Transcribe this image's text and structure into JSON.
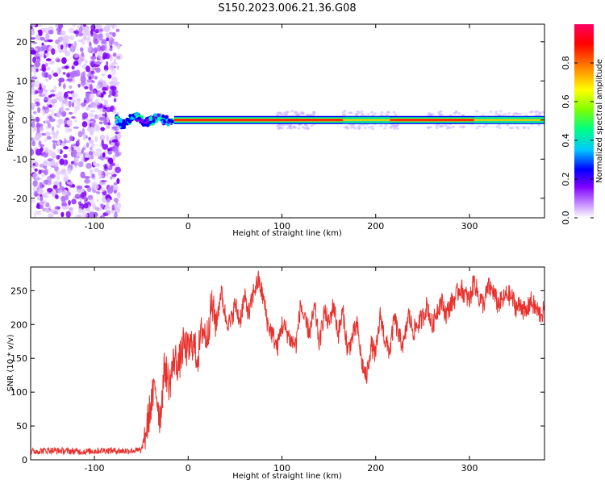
{
  "title": "S150.2023.006.21.36.G08",
  "chart_data": [
    {
      "type": "heatmap",
      "xlabel": "Height of straight line (km)",
      "ylabel": "Frequency (Hz)",
      "xlim": [
        -168,
        380
      ],
      "ylim": [
        -25,
        24.5
      ],
      "xticks": [
        -100,
        0,
        100,
        200,
        300
      ],
      "yticks": [
        20,
        10,
        0,
        -10,
        -20
      ],
      "colorbar": {
        "label": "Normalized spectral amplitude",
        "ticks": [
          0.0,
          0.2,
          0.4,
          0.6,
          0.8
        ],
        "range": [
          0,
          1
        ],
        "colors": [
          "#ffffff",
          "#7f00ff",
          "#0000ff",
          "#00c8ff",
          "#00ff80",
          "#80ff00",
          "#ffff00",
          "#ff8000",
          "#ff0000",
          "#ff0050"
        ]
      },
      "regions": [
        {
          "description_ref": "noise",
          "x_range": [
            -168,
            -78
          ],
          "freq_range": [
            -25,
            24.5
          ],
          "amplitude_range": [
            0.05,
            0.2
          ]
        },
        {
          "description_ref": "carrier",
          "x_range": [
            -78,
            380
          ],
          "freq_center": 0,
          "amplitude_peak": 0.95
        }
      ],
      "grid": false
    },
    {
      "type": "line",
      "xlabel": "Height of straight line (km)",
      "ylabel": "SNR (10 * v/v)",
      "xlim": [
        -168,
        380
      ],
      "ylim": [
        0,
        285
      ],
      "xticks": [
        -100,
        0,
        100,
        200,
        300
      ],
      "yticks": [
        0,
        50,
        100,
        150,
        200,
        250
      ],
      "color": "#e8322e",
      "series": [
        {
          "x": [
            -168,
            -150,
            -130,
            -110,
            -90,
            -70,
            -50,
            -45,
            -40,
            -35,
            -30,
            -25,
            -20,
            -15,
            -10,
            -5,
            0,
            5,
            10,
            15,
            20,
            25,
            30,
            35,
            40,
            45,
            50,
            55,
            60,
            65,
            70,
            75,
            80,
            85,
            90,
            95,
            100,
            105,
            110,
            115,
            120,
            125,
            130,
            135,
            140,
            145,
            150,
            155,
            160,
            165,
            170,
            175,
            180,
            185,
            190,
            195,
            200,
            205,
            210,
            215,
            220,
            225,
            230,
            235,
            240,
            245,
            250,
            255,
            260,
            265,
            270,
            275,
            280,
            285,
            290,
            295,
            300,
            305,
            310,
            315,
            320,
            325,
            330,
            335,
            340,
            345,
            350,
            355,
            360,
            365,
            370,
            375,
            380
          ],
          "values": [
            12,
            14,
            13,
            12,
            14,
            13,
            14,
            40,
            80,
            110,
            60,
            140,
            110,
            150,
            140,
            170,
            160,
            175,
            150,
            195,
            180,
            230,
            200,
            250,
            210,
            200,
            230,
            205,
            240,
            215,
            250,
            265,
            240,
            200,
            185,
            165,
            200,
            190,
            175,
            170,
            230,
            200,
            190,
            225,
            170,
            220,
            200,
            230,
            185,
            220,
            160,
            180,
            200,
            145,
            120,
            170,
            155,
            215,
            175,
            160,
            210,
            180,
            170,
            215,
            190,
            200,
            210,
            230,
            195,
            220,
            235,
            215,
            230,
            240,
            255,
            245,
            235,
            265,
            240,
            230,
            255,
            250,
            230,
            235,
            245,
            240,
            225,
            230,
            215,
            235,
            225,
            215,
            220
          ]
        }
      ],
      "grid": false
    }
  ]
}
